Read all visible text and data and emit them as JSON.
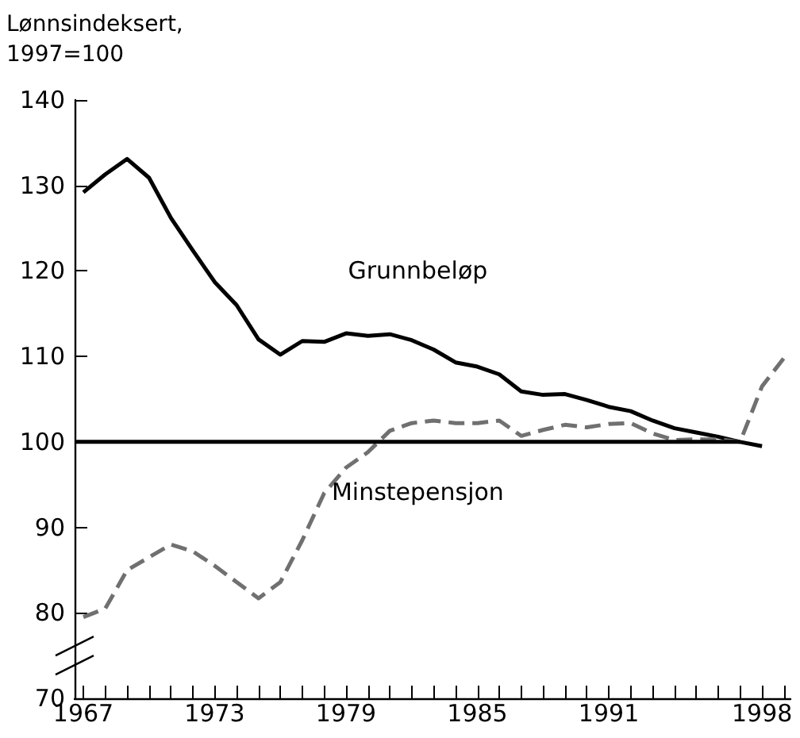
{
  "chart_data": {
    "type": "line",
    "ylabel": "Lønnsindeksert,\n1997=100",
    "xlim": [
      1966.6,
      1999.3
    ],
    "ylim": [
      70,
      140
    ],
    "yticks": [
      70,
      80,
      90,
      100,
      110,
      120,
      130,
      140
    ],
    "xticks": [
      1967,
      {
        "value": 1968,
        "label": null
      },
      {
        "value": 1969,
        "label": null
      },
      {
        "value": 1970,
        "label": null
      },
      {
        "value": 1971,
        "label": null
      },
      {
        "value": 1972,
        "label": null
      },
      1973,
      {
        "value": 1974,
        "label": null
      },
      {
        "value": 1975,
        "label": null
      },
      {
        "value": 1976,
        "label": null
      },
      {
        "value": 1977,
        "label": null
      },
      {
        "value": 1978,
        "label": null
      },
      1979,
      {
        "value": 1980,
        "label": null
      },
      {
        "value": 1981,
        "label": null
      },
      {
        "value": 1982,
        "label": null
      },
      {
        "value": 1983,
        "label": null
      },
      {
        "value": 1984,
        "label": null
      },
      1985,
      {
        "value": 1986,
        "label": null
      },
      {
        "value": 1987,
        "label": null
      },
      {
        "value": 1988,
        "label": null
      },
      {
        "value": 1989,
        "label": null
      },
      {
        "value": 1990,
        "label": null
      },
      1991,
      {
        "value": 1992,
        "label": null
      },
      {
        "value": 1993,
        "label": null
      },
      {
        "value": 1994,
        "label": null
      },
      {
        "value": 1995,
        "label": null
      },
      {
        "value": 1996,
        "label": null
      },
      {
        "value": 1997,
        "label": null
      },
      1998,
      {
        "value": 1999,
        "label": null
      }
    ],
    "grid": false,
    "marker": "none",
    "series": [
      {
        "name": "Grunnbeløp",
        "color": "#000000",
        "line_style": "solid",
        "x": [
          1967,
          1968,
          1969,
          1970,
          1971,
          1972,
          1973,
          1974,
          1975,
          1976,
          1977,
          1978,
          1979,
          1980,
          1981,
          1982,
          1983,
          1984,
          1985,
          1986,
          1987,
          1988,
          1989,
          1990,
          1991,
          1992,
          1993,
          1994,
          1995,
          1996,
          1997,
          1998
        ],
        "values": [
          129.2,
          131.3,
          133.1,
          130.9,
          126.2,
          122.4,
          118.7,
          116.0,
          112.0,
          110.2,
          111.8,
          111.7,
          112.7,
          112.4,
          112.6,
          111.9,
          110.8,
          109.3,
          108.8,
          107.9,
          105.9,
          105.5,
          105.6,
          104.9,
          104.1,
          103.6,
          102.5,
          101.6,
          101.1,
          100.6,
          100.0,
          99.5
        ]
      },
      {
        "name": "Minstepensjon",
        "color": "#707070",
        "line_style": "dashed",
        "x": [
          1967,
          1968,
          1969,
          1970,
          1971,
          1972,
          1973,
          1974,
          1975,
          1976,
          1977,
          1978,
          1979,
          1980,
          1981,
          1982,
          1983,
          1984,
          1985,
          1986,
          1987,
          1988,
          1989,
          1990,
          1991,
          1992,
          1993,
          1994,
          1995,
          1996,
          1997,
          1998,
          1999
        ],
        "values": [
          79.5,
          80.5,
          85.0,
          86.5,
          88.0,
          87.2,
          85.5,
          83.6,
          81.7,
          83.6,
          88.5,
          94.0,
          97.0,
          98.8,
          101.3,
          102.2,
          102.5,
          102.2,
          102.2,
          102.5,
          100.7,
          101.4,
          102.0,
          101.7,
          102.1,
          102.2,
          101.0,
          100.2,
          100.3,
          100.3,
          100.0,
          106.5,
          109.8
        ]
      },
      {
        "color": "#000000",
        "line_style": "solid",
        "x": [
          1966.6,
          1997
        ],
        "values": [
          100,
          100
        ]
      }
    ]
  }
}
